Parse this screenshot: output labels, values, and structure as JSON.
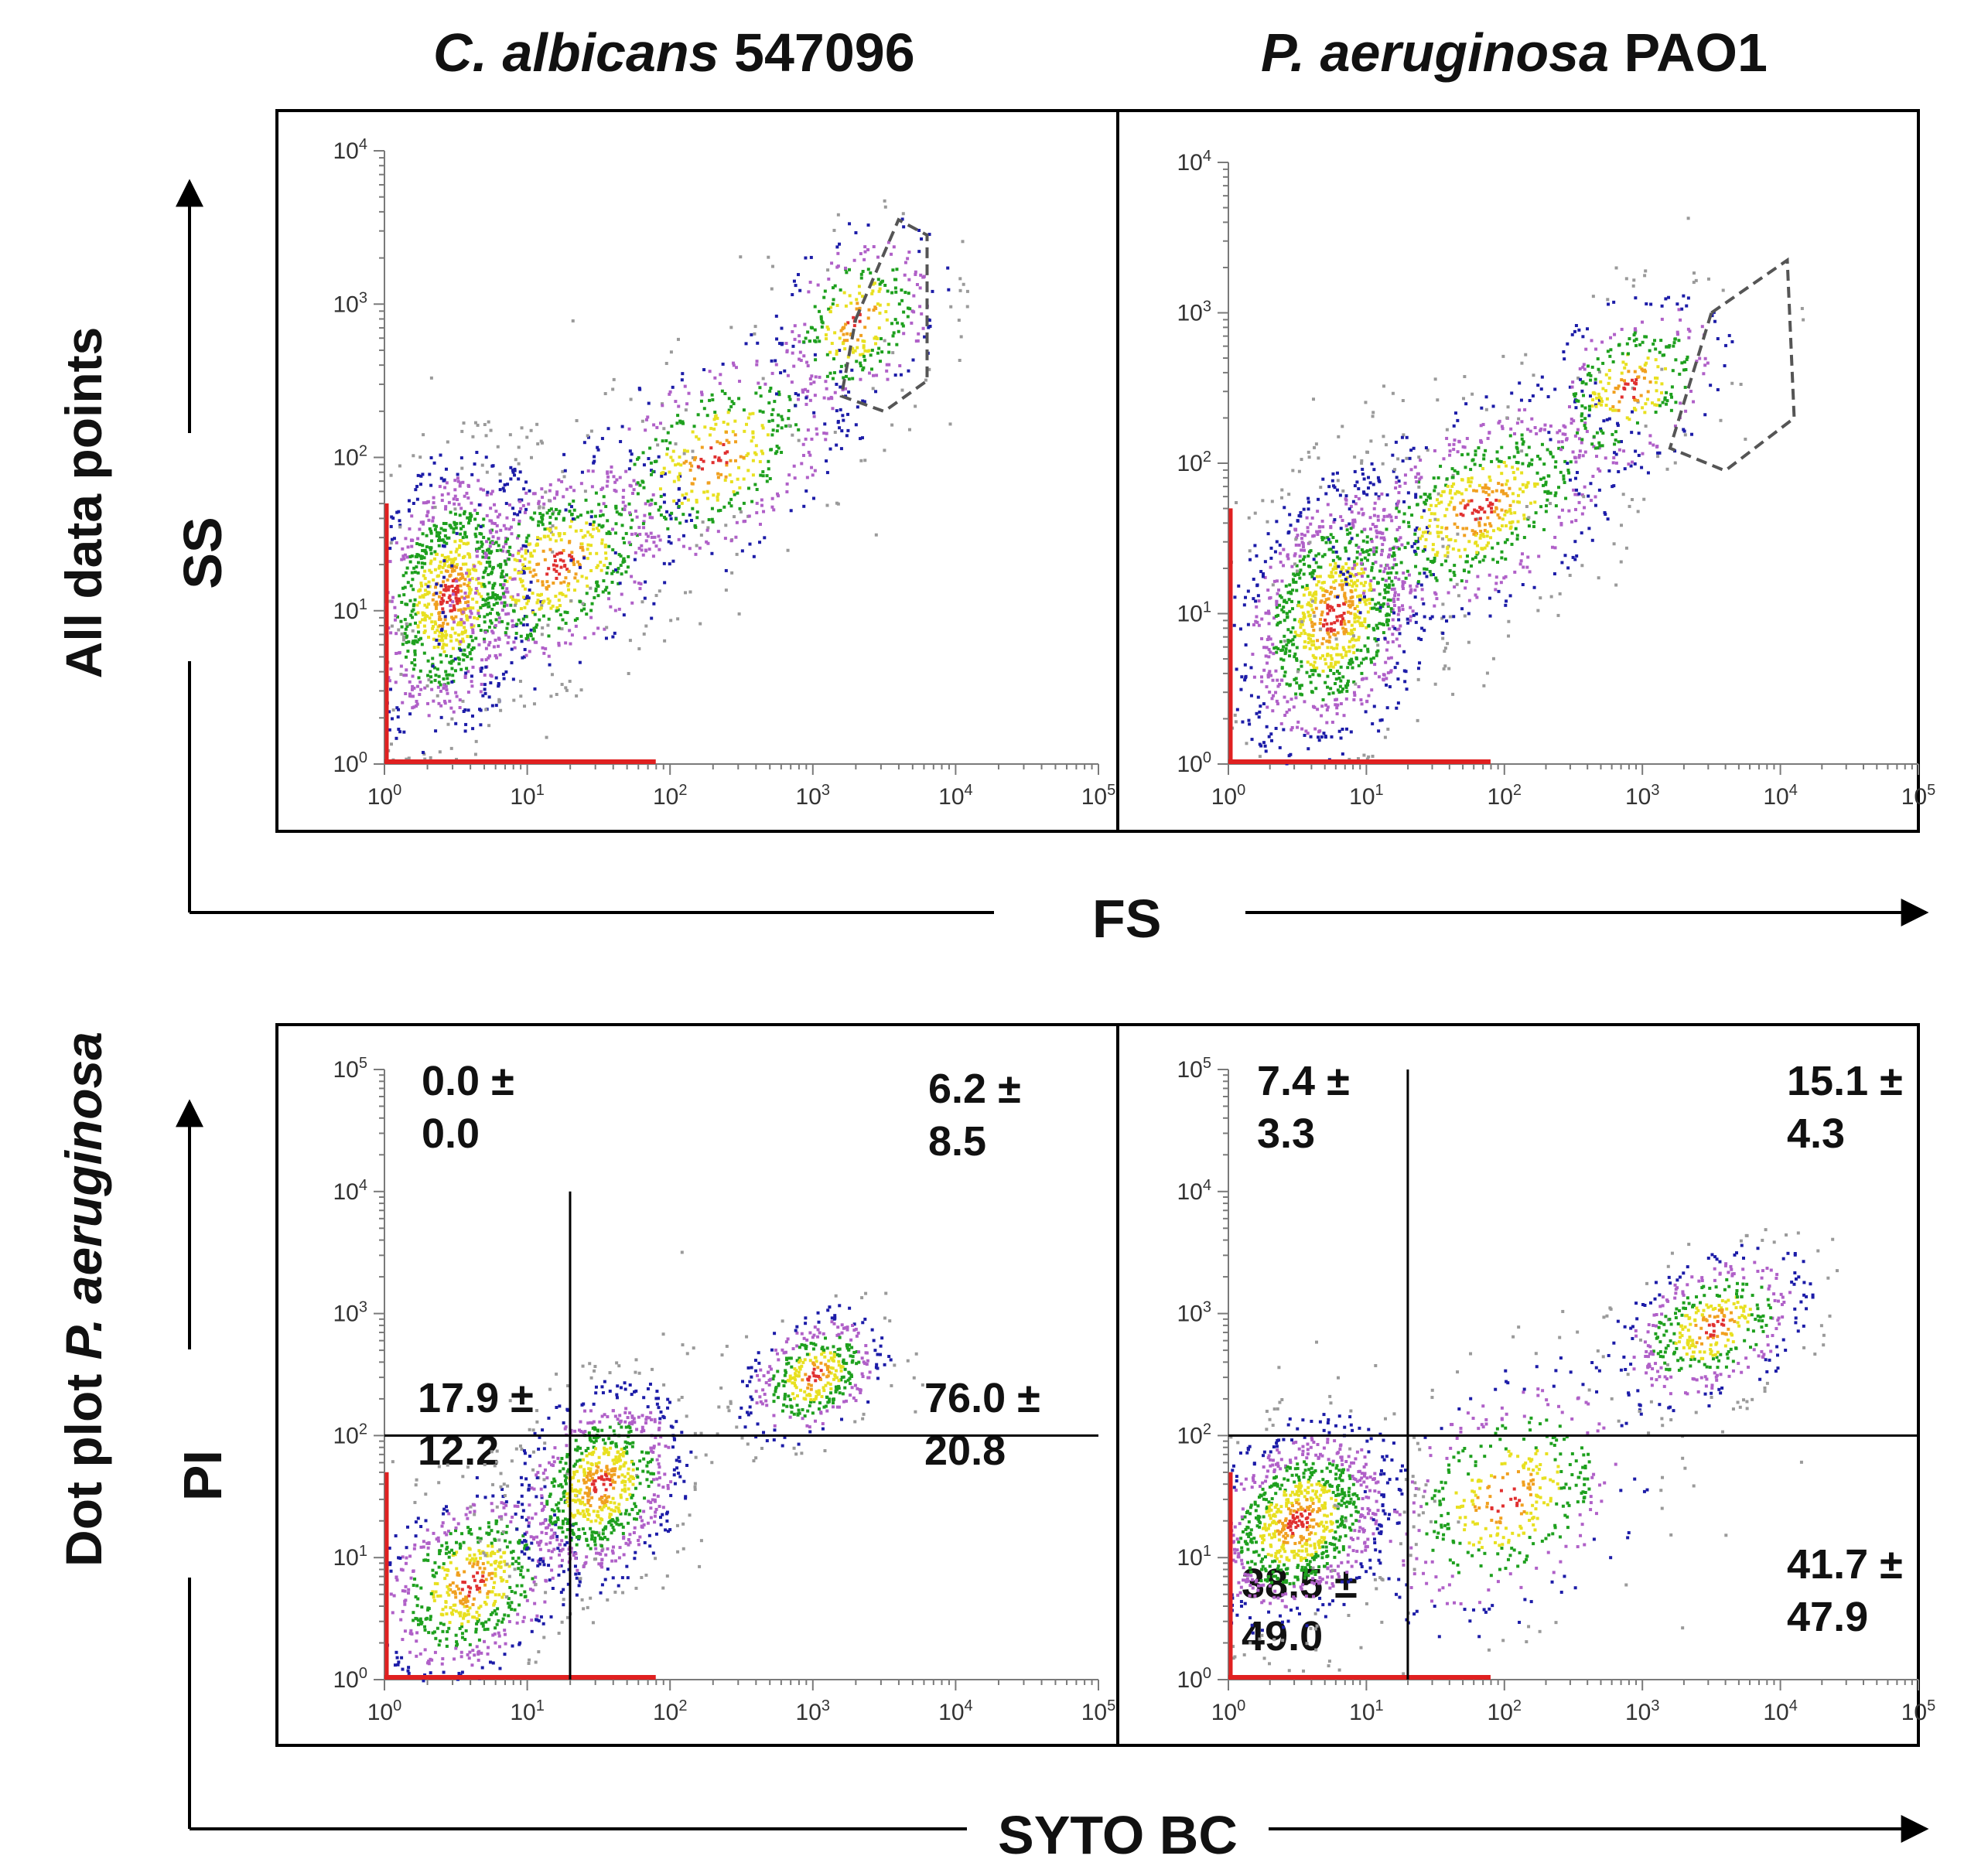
{
  "figure": {
    "panel_titles": {
      "left": {
        "italic": "C. albicans",
        "plain": " 547096"
      },
      "right": {
        "italic": "P. aeruginosa",
        "plain": " PAO1"
      }
    },
    "row_labels": {
      "top": "All data points",
      "bottom_plain": "Dot plot ",
      "bottom_italic": "P. aeruginosa"
    },
    "axis_names": {
      "top_x": "FS",
      "top_y": "SS",
      "bottom_x": "SYTO BC",
      "bottom_y": "PI"
    }
  },
  "chart_data": [
    {
      "id": "top-left",
      "type": "scatter",
      "title": "C. albicans 547096",
      "xlabel": "FS",
      "ylabel": "SS",
      "xscale": "log",
      "yscale": "log",
      "xlim_exp": [
        0,
        5
      ],
      "ylim_exp": [
        0,
        4
      ],
      "x_ticks": [
        {
          "b": "10",
          "e": "0"
        },
        {
          "b": "10",
          "e": "1"
        },
        {
          "b": "10",
          "e": "2"
        },
        {
          "b": "10",
          "e": "3"
        },
        {
          "b": "10",
          "e": "4"
        },
        {
          "b": "10",
          "e": "5"
        }
      ],
      "y_ticks": [
        {
          "b": "10",
          "e": "0"
        },
        {
          "b": "10",
          "e": "1"
        },
        {
          "b": "10",
          "e": "2"
        },
        {
          "b": "10",
          "e": "3"
        },
        {
          "b": "10",
          "e": "4"
        }
      ],
      "gate_polygon_log": [
        [
          3.3,
          2.9
        ],
        [
          3.6,
          3.55
        ],
        [
          3.8,
          3.45
        ],
        [
          3.8,
          2.5
        ],
        [
          3.5,
          2.3
        ],
        [
          3.2,
          2.4
        ]
      ],
      "density_clusters": [
        {
          "cx": 0.45,
          "cy": 1.1,
          "sx": 0.3,
          "sy": 0.45,
          "n": 1100
        },
        {
          "cx": 1.2,
          "cy": 1.3,
          "sx": 0.45,
          "sy": 0.35,
          "n": 700
        },
        {
          "cx": 2.3,
          "cy": 2.0,
          "sx": 0.5,
          "sy": 0.35,
          "n": 500
        },
        {
          "cx": 3.3,
          "cy": 2.9,
          "sx": 0.3,
          "sy": 0.3,
          "n": 350
        }
      ]
    },
    {
      "id": "top-right",
      "type": "scatter",
      "title": "P. aeruginosa PAO1",
      "xlabel": "FS",
      "ylabel": "SS",
      "xscale": "log",
      "yscale": "log",
      "xlim_exp": [
        0,
        5
      ],
      "ylim_exp": [
        0,
        4
      ],
      "x_ticks": [
        {
          "b": "10",
          "e": "0"
        },
        {
          "b": "10",
          "e": "1"
        },
        {
          "b": "10",
          "e": "2"
        },
        {
          "b": "10",
          "e": "3"
        },
        {
          "b": "10",
          "e": "4"
        },
        {
          "b": "10",
          "e": "5"
        }
      ],
      "y_ticks": [
        {
          "b": "10",
          "e": "0"
        },
        {
          "b": "10",
          "e": "1"
        },
        {
          "b": "10",
          "e": "2"
        },
        {
          "b": "10",
          "e": "3"
        },
        {
          "b": "10",
          "e": "4"
        }
      ],
      "gate_polygon_log": [
        [
          3.5,
          3.0
        ],
        [
          4.05,
          3.35
        ],
        [
          4.1,
          2.3
        ],
        [
          3.6,
          1.95
        ],
        [
          3.2,
          2.1
        ]
      ],
      "density_clusters": [
        {
          "cx": 0.75,
          "cy": 1.0,
          "sx": 0.35,
          "sy": 0.45,
          "n": 1200
        },
        {
          "cx": 1.8,
          "cy": 1.7,
          "sx": 0.55,
          "sy": 0.35,
          "n": 800
        },
        {
          "cx": 2.9,
          "cy": 2.5,
          "sx": 0.35,
          "sy": 0.3,
          "n": 350
        }
      ]
    },
    {
      "id": "bottom-left",
      "type": "scatter",
      "xlabel": "SYTO BC",
      "ylabel": "PI",
      "xscale": "log",
      "yscale": "log",
      "xlim_exp": [
        0,
        5
      ],
      "ylim_exp": [
        0,
        5
      ],
      "x_ticks": [
        {
          "b": "10",
          "e": "0"
        },
        {
          "b": "10",
          "e": "1"
        },
        {
          "b": "10",
          "e": "2"
        },
        {
          "b": "10",
          "e": "3"
        },
        {
          "b": "10",
          "e": "4"
        },
        {
          "b": "10",
          "e": "5"
        }
      ],
      "y_ticks": [
        {
          "b": "10",
          "e": "0"
        },
        {
          "b": "10",
          "e": "1"
        },
        {
          "b": "10",
          "e": "2"
        },
        {
          "b": "10",
          "e": "3"
        },
        {
          "b": "10",
          "e": "4"
        },
        {
          "b": "10",
          "e": "5"
        }
      ],
      "quadrant_lines_log": {
        "x": 1.3,
        "y": 2.0
      },
      "quadrants": {
        "upper_left": {
          "value": "0.0 ±",
          "sd": "0.0"
        },
        "upper_right": {
          "value": "6.2 ±",
          "sd": "8.5"
        },
        "lower_left": {
          "value": "17.9 ±",
          "sd": "12.2"
        },
        "lower_right": {
          "value": "76.0 ±",
          "sd": "20.8"
        }
      },
      "density_clusters": [
        {
          "cx": 0.6,
          "cy": 0.8,
          "sx": 0.35,
          "sy": 0.4,
          "n": 700
        },
        {
          "cx": 1.5,
          "cy": 1.6,
          "sx": 0.3,
          "sy": 0.4,
          "n": 900
        },
        {
          "cx": 3.0,
          "cy": 2.5,
          "sx": 0.25,
          "sy": 0.25,
          "n": 450
        }
      ]
    },
    {
      "id": "bottom-right",
      "type": "scatter",
      "xlabel": "SYTO BC",
      "ylabel": "PI",
      "xscale": "log",
      "yscale": "log",
      "xlim_exp": [
        0,
        5
      ],
      "ylim_exp": [
        0,
        5
      ],
      "x_ticks": [
        {
          "b": "10",
          "e": "0"
        },
        {
          "b": "10",
          "e": "1"
        },
        {
          "b": "10",
          "e": "2"
        },
        {
          "b": "10",
          "e": "3"
        },
        {
          "b": "10",
          "e": "4"
        },
        {
          "b": "10",
          "e": "5"
        }
      ],
      "y_ticks": [
        {
          "b": "10",
          "e": "0"
        },
        {
          "b": "10",
          "e": "1"
        },
        {
          "b": "10",
          "e": "2"
        },
        {
          "b": "10",
          "e": "3"
        },
        {
          "b": "10",
          "e": "4"
        },
        {
          "b": "10",
          "e": "5"
        }
      ],
      "quadrant_lines_log": {
        "x": 1.3,
        "y": 2.0
      },
      "quadrants": {
        "upper_left": {
          "value": "7.4  ±",
          "sd": "3.3"
        },
        "upper_right": {
          "value": "15.1 ±",
          "sd": "4.3"
        },
        "lower_left": {
          "value": "38.5 ±",
          "sd": "49.0"
        },
        "lower_right": {
          "value": "41.7 ±",
          "sd": "47.9"
        }
      },
      "density_clusters": [
        {
          "cx": 0.5,
          "cy": 1.3,
          "sx": 0.35,
          "sy": 0.4,
          "n": 1100
        },
        {
          "cx": 2.0,
          "cy": 1.5,
          "sx": 0.5,
          "sy": 0.5,
          "n": 500
        },
        {
          "cx": 3.5,
          "cy": 2.9,
          "sx": 0.35,
          "sy": 0.3,
          "n": 500
        }
      ]
    }
  ],
  "colors": {
    "frame": "#000000",
    "axis": "#7a7a7a",
    "density": [
      "#9a9a9a",
      "#1c1ca8",
      "#b060c8",
      "#1ea01e",
      "#e8e020",
      "#f0a020",
      "#e03030"
    ],
    "baseline": "#e02020",
    "gate": "#555555"
  }
}
